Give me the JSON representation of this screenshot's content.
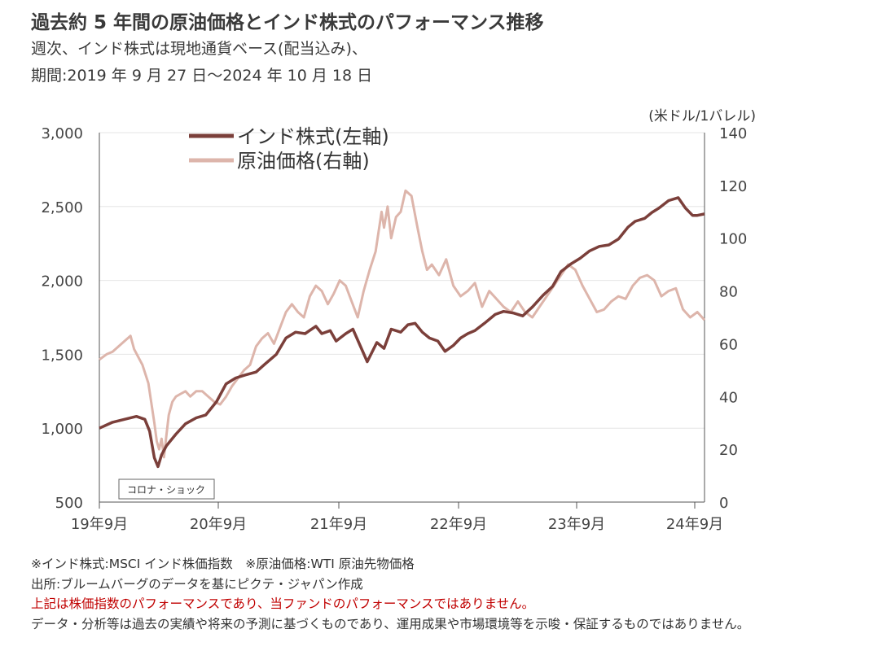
{
  "header": {
    "title": "過去約 5 年間の原油価格とインド株式のパフォーマンス推移",
    "subtitle_line1": "週次、インド株式は現地通貨ベース(配当込み)、",
    "subtitle_line2": "期間:2019 年 9 月 27 日～2024 年 10 月 18 日"
  },
  "chart_data": {
    "type": "line",
    "right_axis_unit": "(米ドル/1バレル)",
    "x_tick_labels": [
      "19年9月",
      "20年9月",
      "21年9月",
      "22年9月",
      "23年9月",
      "24年9月"
    ],
    "x_range": [
      2019.74,
      2024.8
    ],
    "y_left_ticks": [
      "500",
      "1,000",
      "1,500",
      "2,000",
      "2,500",
      "3,000"
    ],
    "y_left_range": [
      500,
      3000
    ],
    "y_right_ticks": [
      "0",
      "20",
      "40",
      "60",
      "80",
      "100",
      "120",
      "140"
    ],
    "y_right_range": [
      0,
      140
    ],
    "grid": true,
    "legend_position": "top-left",
    "annotation": "コロナ・ショック",
    "colors": {
      "india": "#7b3f3a",
      "oil": "#ddb5ab",
      "grid": "#e6e6e6"
    },
    "series": [
      {
        "name": "インド株式(左軸)",
        "axis": "left",
        "x": [
          2019.74,
          2019.85,
          2019.95,
          2020.05,
          2020.12,
          2020.16,
          2020.2,
          2020.23,
          2020.26,
          2020.3,
          2020.38,
          2020.46,
          2020.55,
          2020.63,
          2020.72,
          2020.8,
          2020.88,
          2020.96,
          2021.05,
          2021.12,
          2021.22,
          2021.3,
          2021.38,
          2021.46,
          2021.55,
          2021.6,
          2021.67,
          2021.72,
          2021.8,
          2021.86,
          2021.92,
          2021.98,
          2022.06,
          2022.12,
          2022.18,
          2022.26,
          2022.32,
          2022.38,
          2022.44,
          2022.5,
          2022.57,
          2022.63,
          2022.7,
          2022.76,
          2022.82,
          2022.88,
          2022.96,
          2023.05,
          2023.12,
          2023.2,
          2023.28,
          2023.36,
          2023.45,
          2023.53,
          2023.6,
          2023.68,
          2023.76,
          2023.84,
          2023.92,
          2024.0,
          2024.08,
          2024.16,
          2024.22,
          2024.3,
          2024.36,
          2024.42,
          2024.5,
          2024.58,
          2024.64,
          2024.7,
          2024.74,
          2024.8
        ],
        "values": [
          1000,
          1040,
          1060,
          1080,
          1060,
          980,
          800,
          740,
          820,
          880,
          960,
          1030,
          1070,
          1090,
          1180,
          1300,
          1340,
          1360,
          1380,
          1430,
          1500,
          1610,
          1650,
          1640,
          1690,
          1640,
          1660,
          1590,
          1640,
          1670,
          1560,
          1450,
          1580,
          1540,
          1670,
          1650,
          1700,
          1710,
          1650,
          1610,
          1590,
          1520,
          1560,
          1610,
          1640,
          1660,
          1710,
          1770,
          1790,
          1780,
          1760,
          1820,
          1900,
          1960,
          2060,
          2110,
          2150,
          2200,
          2230,
          2240,
          2280,
          2360,
          2400,
          2420,
          2460,
          2490,
          2540,
          2560,
          2490,
          2440,
          2440,
          2450
        ]
      },
      {
        "name": "原油価格(右軸)",
        "axis": "right",
        "x": [
          2019.74,
          2019.8,
          2019.85,
          2019.9,
          2019.95,
          2020.0,
          2020.03,
          2020.1,
          2020.15,
          2020.2,
          2020.22,
          2020.24,
          2020.26,
          2020.28,
          2020.3,
          2020.32,
          2020.35,
          2020.38,
          2020.42,
          2020.46,
          2020.5,
          2020.55,
          2020.6,
          2020.65,
          2020.7,
          2020.75,
          2020.8,
          2020.85,
          2020.9,
          2020.95,
          2021.0,
          2021.05,
          2021.1,
          2021.15,
          2021.2,
          2021.25,
          2021.3,
          2021.35,
          2021.4,
          2021.45,
          2021.5,
          2021.55,
          2021.6,
          2021.65,
          2021.7,
          2021.75,
          2021.8,
          2021.85,
          2021.9,
          2021.95,
          2022.0,
          2022.05,
          2022.1,
          2022.12,
          2022.15,
          2022.18,
          2022.22,
          2022.26,
          2022.3,
          2022.35,
          2022.4,
          2022.44,
          2022.48,
          2022.52,
          2022.58,
          2022.64,
          2022.7,
          2022.76,
          2022.82,
          2022.88,
          2022.94,
          2023.0,
          2023.06,
          2023.12,
          2023.18,
          2023.24,
          2023.3,
          2023.36,
          2023.42,
          2023.48,
          2023.54,
          2023.6,
          2023.66,
          2023.72,
          2023.78,
          2023.84,
          2023.9,
          2023.96,
          2024.02,
          2024.08,
          2024.14,
          2024.2,
          2024.26,
          2024.32,
          2024.38,
          2024.44,
          2024.5,
          2024.56,
          2024.62,
          2024.68,
          2024.74,
          2024.8
        ],
        "values": [
          54,
          56,
          57,
          59,
          61,
          63,
          58,
          52,
          45,
          30,
          23,
          20,
          24,
          17,
          25,
          33,
          38,
          40,
          41,
          42,
          40,
          42,
          42,
          40,
          38,
          37,
          40,
          44,
          47,
          50,
          52,
          59,
          62,
          64,
          60,
          66,
          72,
          75,
          72,
          70,
          78,
          82,
          80,
          75,
          79,
          84,
          82,
          76,
          70,
          80,
          88,
          95,
          110,
          104,
          112,
          100,
          108,
          110,
          118,
          116,
          104,
          95,
          88,
          90,
          86,
          92,
          82,
          78,
          80,
          83,
          74,
          80,
          77,
          74,
          72,
          76,
          72,
          70,
          74,
          78,
          82,
          86,
          90,
          88,
          82,
          77,
          72,
          73,
          76,
          78,
          77,
          82,
          85,
          86,
          84,
          78,
          80,
          81,
          73,
          70,
          72,
          69
        ]
      }
    ]
  },
  "notes": {
    "line1": "※インド株式:MSCI インド株価指数　※原油価格:WTI 原油先物価格",
    "line2": "出所:ブルームバーグのデータを基にピクテ・ジャパン作成",
    "line3": "上記は株価指数のパフォーマンスであり、当ファンドのパフォーマンスではありません。",
    "line4": "データ・分析等は過去の実績や将来の予測に基づくものであり、運用成果や市場環境等を示唆・保証するものではありません。"
  }
}
